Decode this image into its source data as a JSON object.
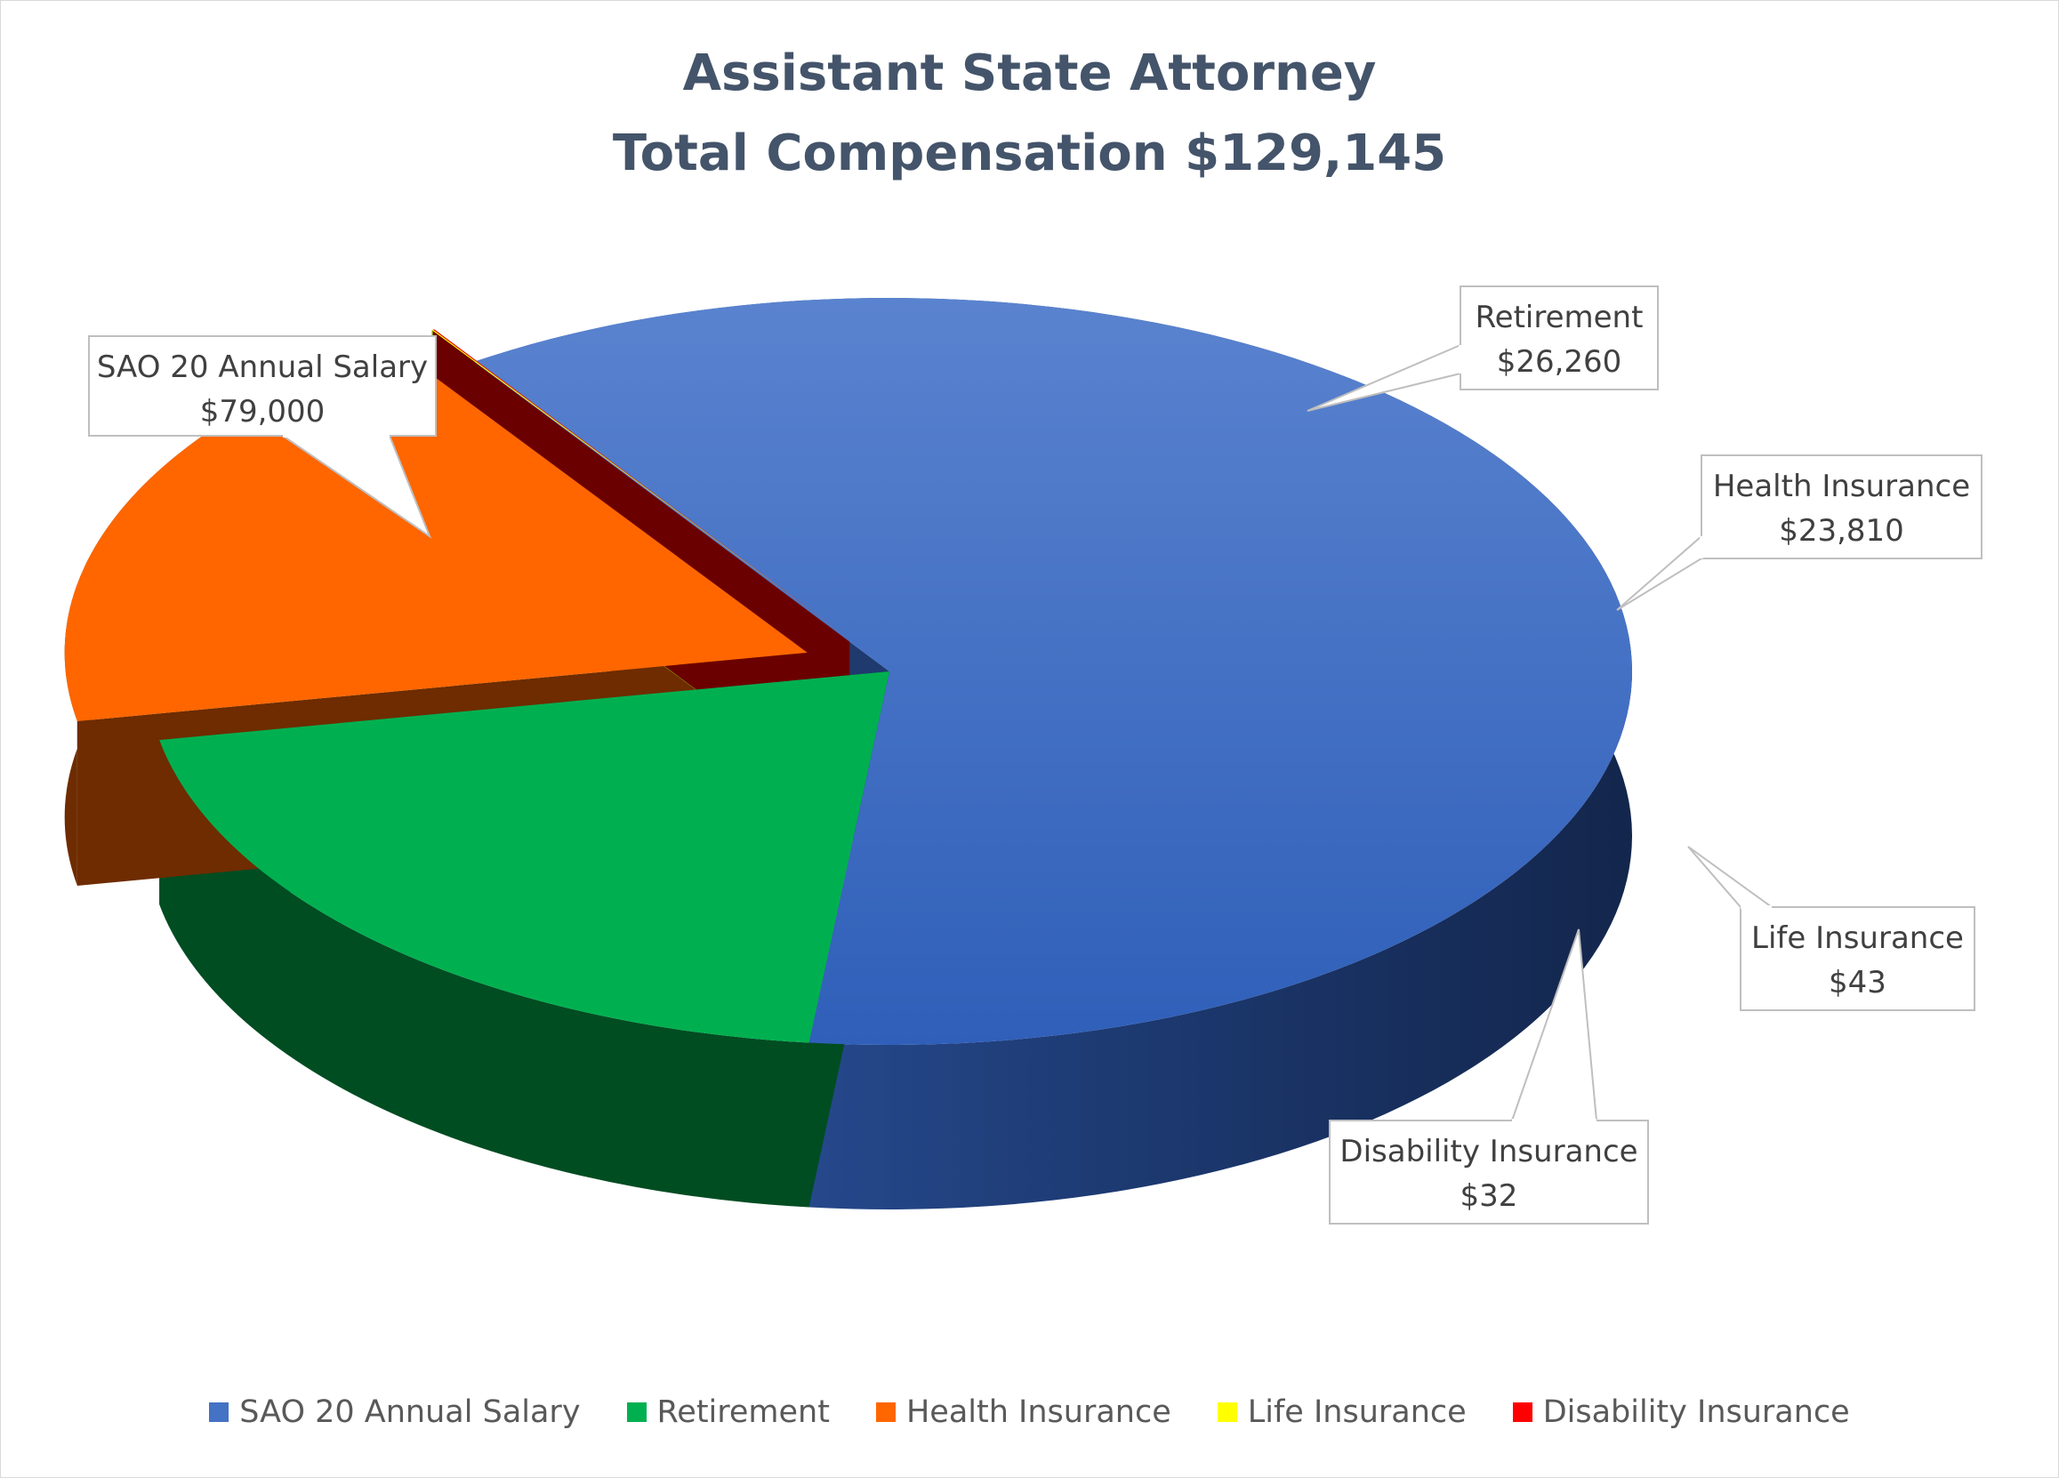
{
  "chart_data": {
    "type": "pie",
    "style": "3d-exploded",
    "title": [
      "Assistant State Attorney",
      "Total Compensation $129,145"
    ],
    "legend_position": "bottom",
    "slices": [
      {
        "label": "SAO 20 Annual Salary",
        "value": 79000,
        "data_label": "$79,000",
        "color": "#4472c4",
        "side_color": "#1f3a6e"
      },
      {
        "label": "Retirement",
        "value": 26260,
        "data_label": "$26,260",
        "color": "#00b050",
        "side_color": "#004d22"
      },
      {
        "label": "Health Insurance",
        "value": 23810,
        "data_label": "$23,810",
        "color": "#ff6600",
        "side_color": "#6e2c00"
      },
      {
        "label": "Life Insurance",
        "value": 43,
        "data_label": "$43",
        "color": "#ffff00",
        "side_color": "#8a8a00"
      },
      {
        "label": "Disability Insurance",
        "value": 32,
        "data_label": "$32",
        "color": "#ff0000",
        "side_color": "#6b0000"
      }
    ]
  }
}
